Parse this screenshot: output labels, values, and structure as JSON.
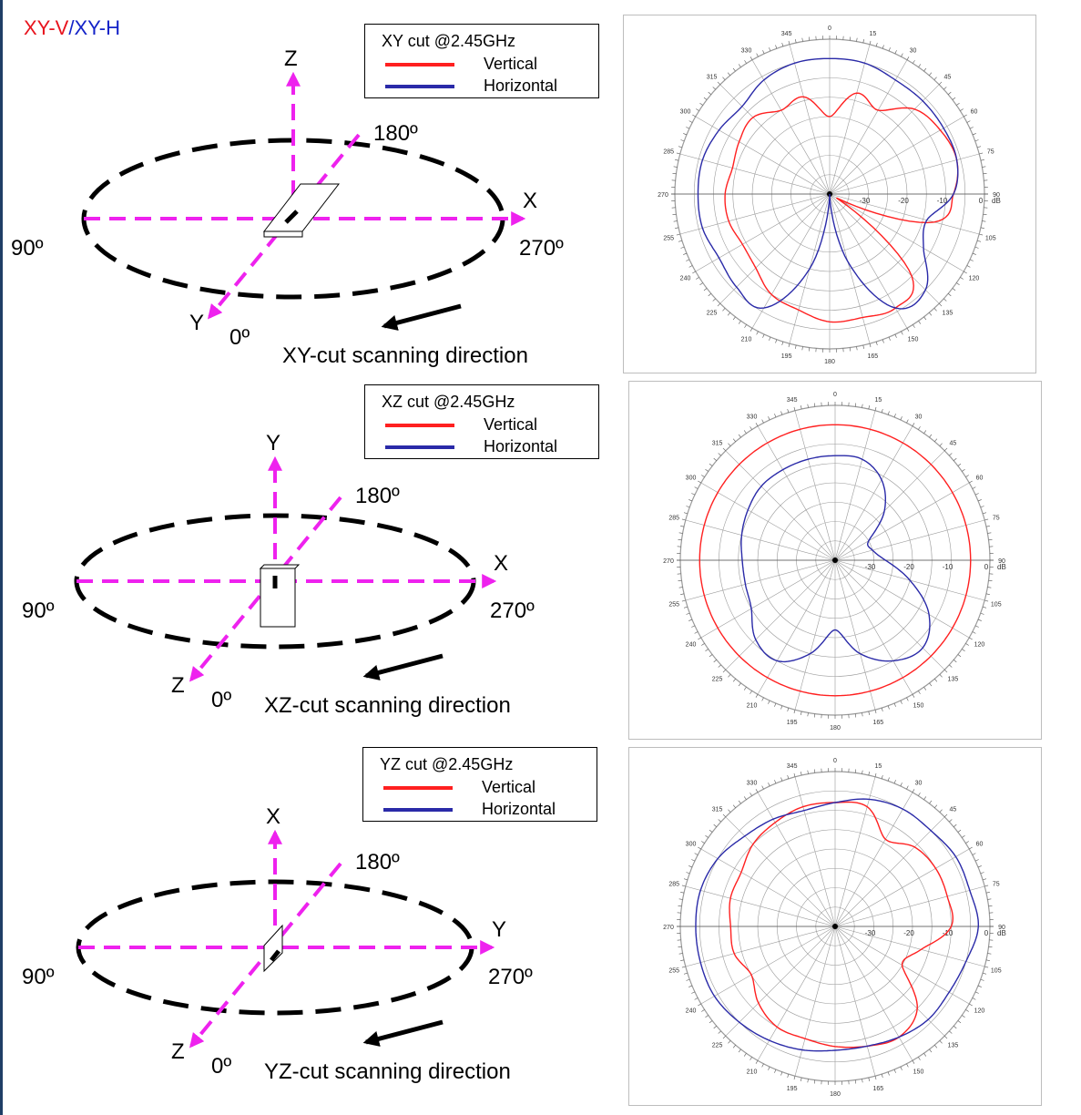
{
  "header": {
    "legend_v": "XY-V",
    "legend_sep": "/",
    "legend_h": "XY-H",
    "color_v": "#e8141e",
    "color_h": "#1423c8"
  },
  "colors": {
    "vertical": "#ff2020",
    "horizontal": "#2a2aa8",
    "axis_dash": "#ee22ee",
    "ellipse": "#000000"
  },
  "common": {
    "angle_0": "0º",
    "angle_90": "90º",
    "angle_180": "180º",
    "angle_270": "270º",
    "legend_vertical": "Vertical",
    "legend_horizontal": "Horizontal"
  },
  "rows": [
    {
      "axis_up": "Z",
      "axis_right": "X",
      "axis_diag": "Y",
      "legend_title": "XY cut @2.45GHz",
      "caption": "XY-cut scanning direction"
    },
    {
      "axis_up": "Y",
      "axis_right": "X",
      "axis_diag": "Z",
      "legend_title": "XZ cut @2.45GHz",
      "caption": "XZ-cut scanning direction"
    },
    {
      "axis_up": "X",
      "axis_right": "Y",
      "axis_diag": "Z",
      "legend_title": "YZ cut @2.45GHz",
      "caption": "YZ-cut scanning direction"
    }
  ],
  "chart_data": [
    {
      "type": "polar",
      "title": "XY cut @2.45GHz",
      "angle_ticks": [
        "0",
        "15",
        "30",
        "45",
        "60",
        "75",
        "90",
        "105",
        "120",
        "135",
        "150",
        "165",
        "180",
        "195",
        "210",
        "225",
        "240",
        "255",
        "270",
        "285",
        "300",
        "315",
        "330",
        "345"
      ],
      "radial_ticks": [
        "-30",
        "-20",
        "-10",
        "0"
      ],
      "radial_unit": "dB",
      "rlim": [
        -40,
        0
      ],
      "series": [
        {
          "name": "Vertical",
          "angles": [
            0,
            15,
            30,
            45,
            60,
            75,
            90,
            105,
            120,
            135,
            150,
            165,
            180,
            195,
            210,
            225,
            240,
            255,
            270,
            285,
            300,
            315,
            330,
            345
          ],
          "values": [
            -20,
            -13,
            -15,
            -9,
            -7,
            -6,
            -8,
            -12,
            -38,
            -10,
            -6,
            -7,
            -7,
            -9,
            -10,
            -13,
            -14,
            -13,
            -13,
            -14,
            -13,
            -12,
            -15,
            -14
          ]
        },
        {
          "name": "Horizontal",
          "angles": [
            0,
            15,
            30,
            45,
            60,
            75,
            90,
            105,
            120,
            135,
            150,
            165,
            180,
            195,
            210,
            225,
            240,
            255,
            270,
            285,
            300,
            315,
            330,
            345
          ],
          "values": [
            -5,
            -5,
            -6,
            -6,
            -6,
            -6,
            -8,
            -14,
            -12,
            -5,
            -6,
            -22,
            -40,
            -20,
            -6,
            -6,
            -7,
            -6,
            -6,
            -6,
            -7,
            -8,
            -6,
            -5
          ]
        }
      ]
    },
    {
      "type": "polar",
      "title": "XZ cut @2.45GHz",
      "angle_ticks": [
        "0",
        "15",
        "30",
        "45",
        "60",
        "75",
        "90",
        "105",
        "120",
        "135",
        "150",
        "165",
        "180",
        "195",
        "210",
        "225",
        "240",
        "255",
        "270",
        "285",
        "300",
        "315",
        "330",
        "345"
      ],
      "radial_ticks": [
        "-30",
        "-20",
        "-10",
        "0"
      ],
      "radial_unit": "dB",
      "rlim": [
        -40,
        0
      ],
      "series": [
        {
          "name": "Vertical",
          "angles": [
            0,
            15,
            30,
            45,
            60,
            75,
            90,
            105,
            120,
            135,
            150,
            165,
            180,
            195,
            210,
            225,
            240,
            255,
            270,
            285,
            300,
            315,
            330,
            345
          ],
          "values": [
            -5,
            -5,
            -5,
            -5,
            -5,
            -5,
            -5,
            -5,
            -5,
            -5,
            -5,
            -5,
            -5,
            -5,
            -5,
            -5,
            -5,
            -5,
            -5,
            -5,
            -5,
            -5,
            -5,
            -5
          ]
        },
        {
          "name": "Horizontal",
          "angles": [
            0,
            15,
            30,
            45,
            60,
            75,
            90,
            105,
            120,
            135,
            150,
            165,
            180,
            195,
            210,
            225,
            240,
            255,
            270,
            285,
            300,
            315,
            330,
            345
          ],
          "values": [
            -13,
            -13,
            -16,
            -22,
            -30,
            -30,
            -27,
            -20,
            -12,
            -8,
            -10,
            -15,
            -22,
            -15,
            -10,
            -11,
            -15,
            -16,
            -16,
            -15,
            -14,
            -13,
            -13,
            -13
          ]
        }
      ]
    },
    {
      "type": "polar",
      "title": "YZ cut @2.45GHz",
      "angle_ticks": [
        "0",
        "15",
        "30",
        "45",
        "60",
        "75",
        "90",
        "105",
        "120",
        "135",
        "150",
        "165",
        "180",
        "195",
        "210",
        "225",
        "240",
        "255",
        "270",
        "285",
        "300",
        "315",
        "330",
        "345"
      ],
      "radial_ticks": [
        "-30",
        "-20",
        "-10",
        "0"
      ],
      "radial_unit": "dB",
      "rlim": [
        -40,
        0
      ],
      "series": [
        {
          "name": "Vertical",
          "angles": [
            0,
            15,
            30,
            45,
            60,
            75,
            90,
            105,
            120,
            135,
            150,
            165,
            180,
            195,
            210,
            225,
            240,
            255,
            270,
            285,
            300,
            315,
            330,
            345
          ],
          "values": [
            -8,
            -8,
            -14,
            -11,
            -10,
            -10,
            -10,
            -17,
            -20,
            -10,
            -7,
            -8,
            -9,
            -10,
            -10,
            -12,
            -15,
            -13,
            -13,
            -12,
            -12,
            -10,
            -9,
            -8
          ]
        },
        {
          "name": "Horizontal",
          "angles": [
            0,
            15,
            30,
            45,
            60,
            75,
            90,
            105,
            120,
            135,
            150,
            165,
            180,
            195,
            210,
            225,
            240,
            255,
            270,
            285,
            300,
            315,
            330,
            345
          ],
          "values": [
            -8,
            -6,
            -5,
            -5,
            -4,
            -4,
            -3,
            -5,
            -6,
            -6,
            -7,
            -8,
            -8,
            -7,
            -6,
            -5,
            -4,
            -4,
            -4,
            -4,
            -5,
            -7,
            -8,
            -9
          ]
        }
      ]
    }
  ]
}
